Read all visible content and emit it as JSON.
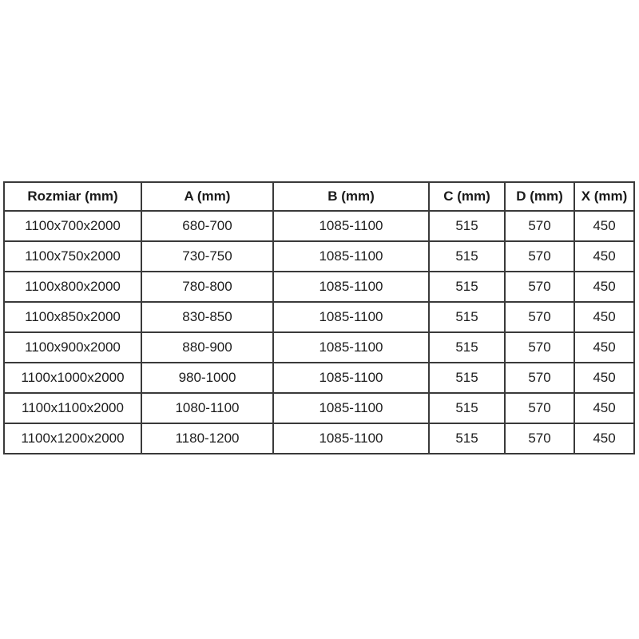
{
  "table": {
    "columns": [
      "Rozmiar (mm)",
      "A (mm)",
      "B (mm)",
      "C (mm)",
      "D (mm)",
      "X (mm)"
    ],
    "rows": [
      [
        "1100x700x2000",
        "680-700",
        "1085-1100",
        "515",
        "570",
        "450"
      ],
      [
        "1100x750x2000",
        "730-750",
        "1085-1100",
        "515",
        "570",
        "450"
      ],
      [
        "1100x800x2000",
        "780-800",
        "1085-1100",
        "515",
        "570",
        "450"
      ],
      [
        "1100x850x2000",
        "830-850",
        "1085-1100",
        "515",
        "570",
        "450"
      ],
      [
        "1100x900x2000",
        "880-900",
        "1085-1100",
        "515",
        "570",
        "450"
      ],
      [
        "1100x1000x2000",
        "980-1000",
        "1085-1100",
        "515",
        "570",
        "450"
      ],
      [
        "1100x1100x2000",
        "1080-1100",
        "1085-1100",
        "515",
        "570",
        "450"
      ],
      [
        "1100x1200x2000",
        "1180-1200",
        "1085-1100",
        "515",
        "570",
        "450"
      ]
    ],
    "colors": {
      "border": "#3a3a3a",
      "text": "#1d1d1d",
      "background": "#ffffff"
    }
  }
}
